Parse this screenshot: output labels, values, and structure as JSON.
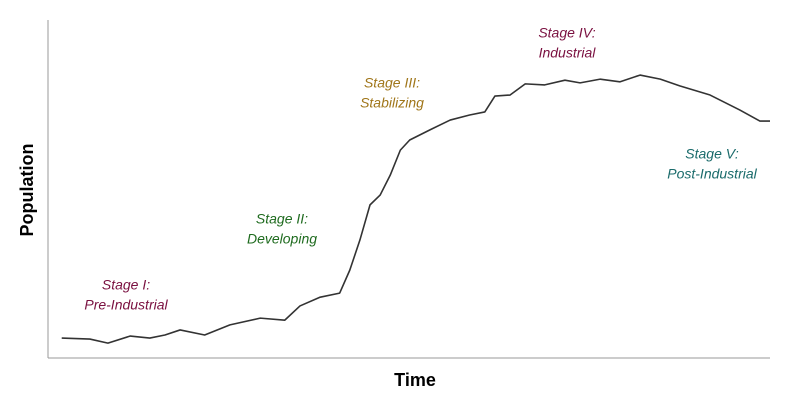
{
  "chart_data": {
    "type": "line",
    "xlabel": "Time",
    "ylabel": "Population",
    "xlim": [
      0,
      100
    ],
    "ylim": [
      0,
      100
    ],
    "series": [
      {
        "color": "#333333",
        "x": [
          1.9,
          5.8,
          8.3,
          11.4,
          14.1,
          16.2,
          18.3,
          21.7,
          25.2,
          29.4,
          32.8,
          34.9,
          37.7,
          40.4,
          41.8,
          43.2,
          44.6,
          46.0,
          47.4,
          48.8,
          50.1,
          52.9,
          55.7,
          58.4,
          60.5,
          61.9,
          64.0,
          66.1,
          68.8,
          71.6,
          73.7,
          76.5,
          79.2,
          82.0,
          84.8,
          87.5,
          91.7,
          95.8,
          98.6,
          100
        ],
        "values": [
          5.9,
          5.6,
          4.4,
          6.5,
          5.9,
          6.8,
          8.3,
          6.8,
          9.8,
          11.8,
          11.2,
          15.4,
          18.0,
          19.2,
          26.0,
          34.9,
          45.3,
          48.2,
          54.1,
          61.5,
          64.5,
          67.5,
          70.4,
          71.9,
          72.8,
          77.5,
          77.8,
          81.1,
          80.8,
          82.2,
          81.4,
          82.5,
          81.7,
          83.7,
          82.5,
          80.5,
          77.8,
          73.4,
          70.1,
          70.1
        ]
      }
    ],
    "annotations": [
      {
        "lines": [
          "Stage I:",
          "Pre-Industrial"
        ],
        "color": "#7a1040"
      },
      {
        "lines": [
          "Stage II:",
          "Developing"
        ],
        "color": "#1f6b1f"
      },
      {
        "lines": [
          "Stage III:",
          "Stabilizing"
        ],
        "color": "#a0761a"
      },
      {
        "lines": [
          "Stage IV:",
          "Industrial"
        ],
        "color": "#7a1040"
      },
      {
        "lines": [
          "Stage V:",
          "Post-Industrial"
        ],
        "color": "#1a6b6b"
      }
    ]
  }
}
